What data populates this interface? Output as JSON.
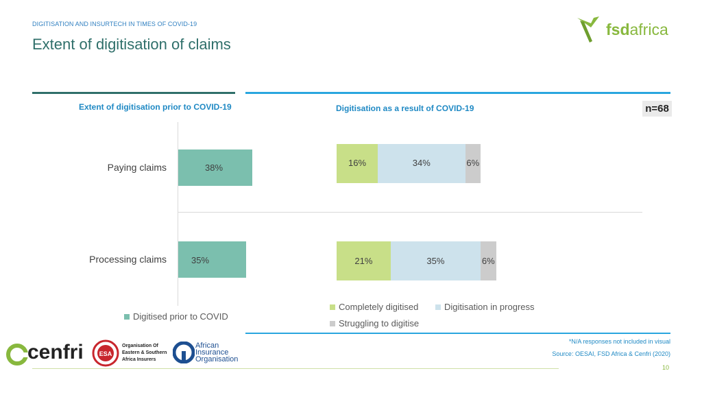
{
  "header": {
    "kicker": "DIGITISATION AND INSURTECH IN TIMES OF COVID-19",
    "title": "Extent of digitisation of claims",
    "logo_text_bold": "fsd",
    "logo_text_rest": "africa"
  },
  "left_panel": {
    "heading": "Extent of digitisation prior to COVID-19",
    "legend": "Digitised prior to COVID"
  },
  "right_panel": {
    "heading": "Digitisation as a result of COVID-19",
    "n_badge": "n=68",
    "legend": [
      "Completely digitised",
      "Digitisation in progress",
      "Struggling to digitise"
    ]
  },
  "chart_data": [
    {
      "type": "bar",
      "orientation": "horizontal",
      "categories": [
        "Paying claims",
        "Processing claims"
      ],
      "series": [
        {
          "name": "Digitised prior to COVID",
          "values": [
            38,
            35
          ],
          "labels": [
            "38%",
            "35%"
          ],
          "color": "#7bbfae"
        }
      ],
      "title": "Extent of digitisation prior to COVID-19"
    },
    {
      "type": "bar",
      "orientation": "horizontal",
      "stacked": true,
      "categories": [
        "Paying claims",
        "Processing claims"
      ],
      "series": [
        {
          "name": "Completely digitised",
          "values": [
            16,
            21
          ],
          "labels": [
            "16%",
            "21%"
          ],
          "color": "#c8df88"
        },
        {
          "name": "Digitisation in progress",
          "values": [
            34,
            35
          ],
          "labels": [
            "34%",
            "35%"
          ],
          "color": "#cde2ec"
        },
        {
          "name": "Struggling to digitise",
          "values": [
            6,
            6
          ],
          "labels": [
            "6%",
            "6%"
          ],
          "color": "#cccccc"
        }
      ],
      "title": "Digitisation as a result of COVID-19"
    }
  ],
  "footer": {
    "note": "*N/A responses not included in visual",
    "source": "Source: OESAI, FSD Africa & Cenfri (2020)",
    "page": "10",
    "partners": {
      "cenfri": "cenfri",
      "oesai": "Organisation Of Eastern & Southern Africa Insurers",
      "oesai_lines": [
        "Organisation Of",
        "Eastern & Southern",
        "Africa Insurers"
      ],
      "oesai_seal": "OESAI",
      "aio_lines": [
        "African",
        "Insurance",
        "Organisation"
      ]
    }
  },
  "colors": {
    "accent_teal": "#2f6f6a",
    "accent_blue": "#29a6df",
    "brand_green": "#88b83e"
  }
}
